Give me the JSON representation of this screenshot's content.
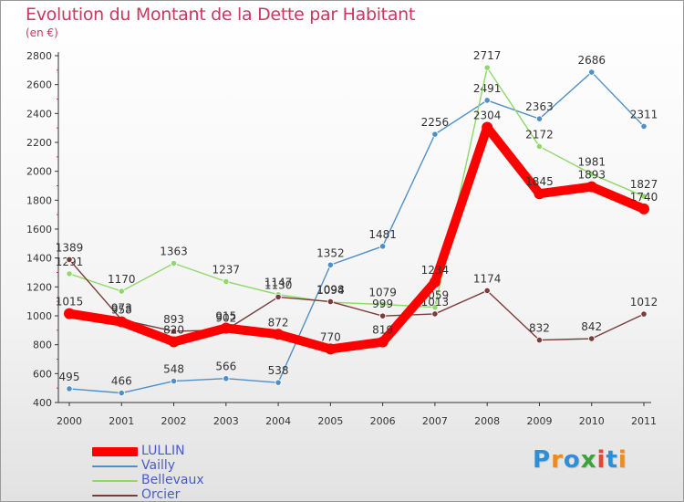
{
  "header": {
    "title": "Evolution du Montant de la Dette par Habitant",
    "subtitle": "(en €)"
  },
  "brand": {
    "letters": [
      "P",
      "r",
      "o",
      "x",
      "i",
      "t",
      "i"
    ],
    "colors": [
      "#2f8fd6",
      "#f08a1f",
      "#2f8fd6",
      "#37a53a",
      "#e8462c",
      "#2f8fd6",
      "#f08a1f"
    ]
  },
  "chart_data": {
    "type": "line",
    "title": "Evolution du Montant de la Dette par Habitant",
    "subtitle": "(en €)",
    "xlabel": "",
    "ylabel": "",
    "x": [
      "2000",
      "2001",
      "2002",
      "2003",
      "2004",
      "2005",
      "2006",
      "2007",
      "2008",
      "2009",
      "2010",
      "2011"
    ],
    "yticks": [
      "400",
      "600",
      "800",
      "1000",
      "1200",
      "1400",
      "1600",
      "1800",
      "2000",
      "2200",
      "2400",
      "2600",
      "2800"
    ],
    "ylim": [
      400,
      2800
    ],
    "grid": false,
    "legend": "bottom-left",
    "series": [
      {
        "name": "Vailly",
        "color": "#4f8fc9",
        "values": [
          495,
          466,
          548,
          566,
          538,
          1352,
          1481,
          2256,
          2491,
          2363,
          2686,
          2311
        ],
        "labels": [
          "495",
          "466",
          "548",
          "566",
          "538",
          "1352",
          "1481",
          "2256",
          "2491",
          "2363",
          "2686",
          "2311"
        ]
      },
      {
        "name": "Bellevaux",
        "color": "#8fd86a",
        "values": [
          1291,
          1170,
          1363,
          1237,
          1147,
          1094,
          1079,
          1059,
          2717,
          2172,
          1981,
          1827
        ],
        "labels": [
          "1291",
          "1170",
          "1363",
          "1237",
          "1147",
          "1094",
          "1079",
          "1059",
          "2717",
          "2172",
          "1981",
          "1827"
        ]
      },
      {
        "name": "Orcier",
        "color": "#7a3b3b",
        "values": [
          1389,
          973,
          893,
          902,
          1130,
          1098,
          999,
          1013,
          1174,
          832,
          842,
          1012
        ],
        "labels": [
          "1389",
          "973",
          "893",
          "902",
          "1130",
          "1098",
          "999",
          "1013",
          "1174",
          "832",
          "842",
          "1012"
        ]
      },
      {
        "name": "LULLIN",
        "color": "#ff0000",
        "values": [
          1015,
          958,
          820,
          915,
          872,
          770,
          819,
          1234,
          2304,
          1845,
          1893,
          1740
        ],
        "labels": [
          "1015",
          "958",
          "820",
          "915",
          "872",
          "770",
          "819",
          "1234",
          "2304",
          "1845",
          "1893",
          "1740"
        ]
      }
    ]
  },
  "legend": {
    "items": [
      {
        "label": "LULLIN",
        "color": "#ff0000",
        "thickness": 10
      },
      {
        "label": "Vailly",
        "color": "#4f8fc9",
        "thickness": 2
      },
      {
        "label": "Bellevaux",
        "color": "#8fd86a",
        "thickness": 2
      },
      {
        "label": "Orcier",
        "color": "#7a3b3b",
        "thickness": 2
      }
    ]
  }
}
